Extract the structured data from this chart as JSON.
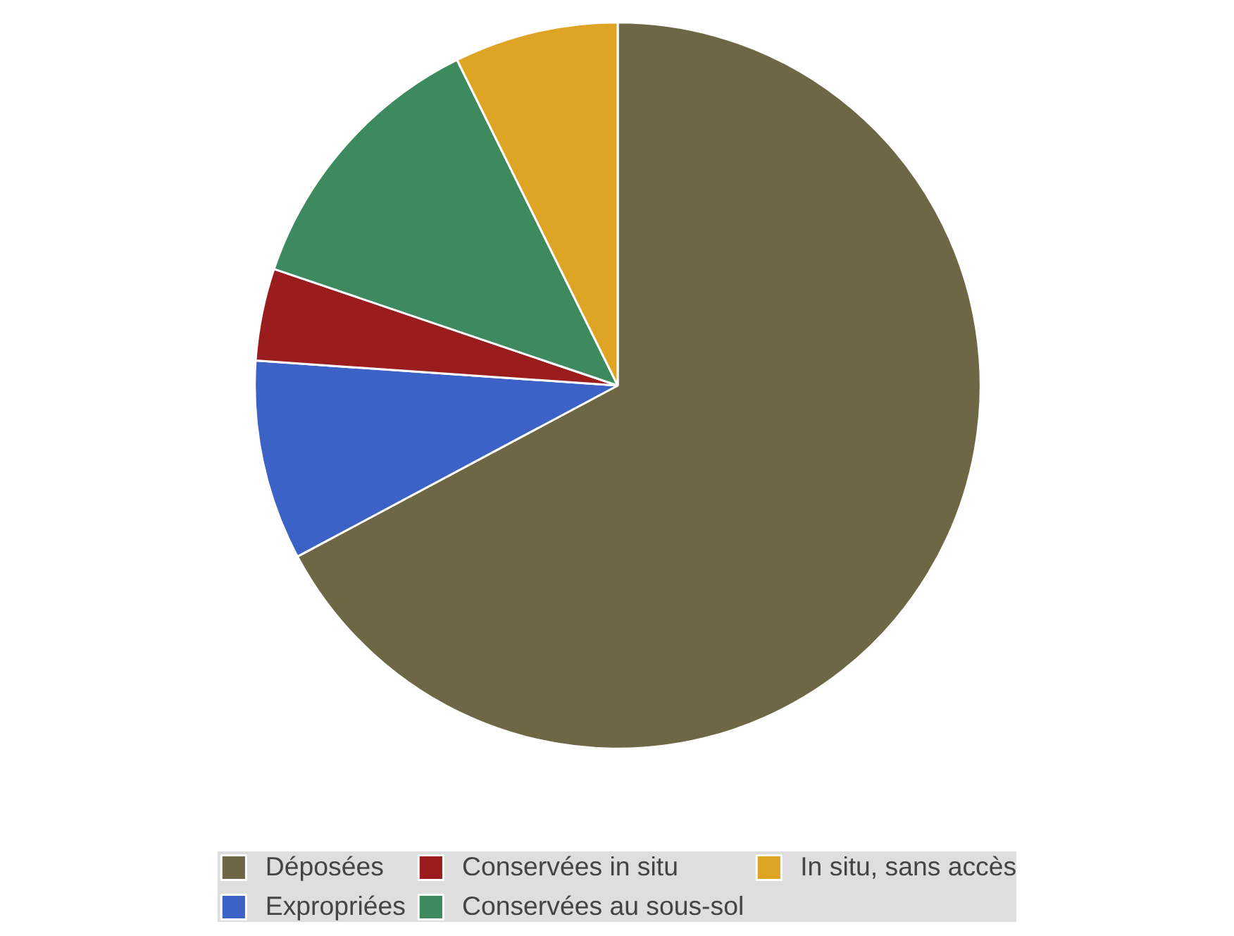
{
  "chart_data": {
    "type": "pie",
    "categories": [
      "Déposées",
      "Expropriées",
      "Conservées in situ",
      "Conservées au sous-sol",
      "In situ, sans accès"
    ],
    "values": [
      67.2,
      8.9,
      4.1,
      12.5,
      7.3
    ],
    "colors": [
      "#6e6745",
      "#3c62c8",
      "#9a1c1c",
      "#3e8a5f",
      "#dea424"
    ],
    "legend": "bottom"
  }
}
